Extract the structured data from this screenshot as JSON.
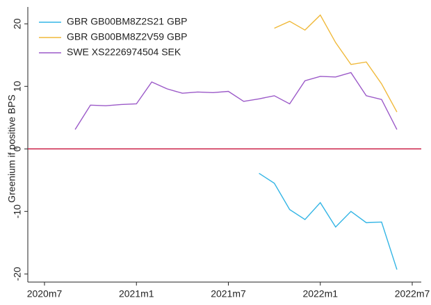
{
  "chart_data": {
    "type": "line",
    "y_label": "Greenium if positive BPS",
    "x": [
      "2020m9",
      "2020m10",
      "2020m11",
      "2020m12",
      "2021m1",
      "2021m2",
      "2021m3",
      "2021m4",
      "2021m5",
      "2021m6",
      "2021m7",
      "2021m8",
      "2021m9",
      "2021m10",
      "2021m11",
      "2021m12",
      "2022m1",
      "2022m2",
      "2022m3",
      "2022m4",
      "2022m5",
      "2022m6"
    ],
    "series": [
      {
        "name": "GBR GB00BM8Z2S21 GBP",
        "color": "#33b5e5",
        "values": [
          null,
          null,
          null,
          null,
          null,
          null,
          null,
          null,
          null,
          null,
          null,
          null,
          -3.9,
          -5.5,
          -9.7,
          -11.3,
          -8.6,
          -12.5,
          -10.0,
          -11.8,
          -11.7,
          -19.3
        ]
      },
      {
        "name": "GBR GB00BM8Z2V59 GBP",
        "color": "#f0b93a",
        "values": [
          null,
          null,
          null,
          null,
          null,
          null,
          null,
          null,
          null,
          null,
          null,
          null,
          null,
          19.3,
          20.4,
          19.0,
          21.4,
          17.0,
          13.5,
          13.9,
          10.4,
          5.9
        ]
      },
      {
        "name": "SWE XS2226974504 SEK",
        "color": "#9b59c8",
        "values": [
          3.1,
          7.0,
          6.9,
          7.1,
          7.2,
          10.7,
          9.6,
          8.9,
          9.1,
          9.0,
          9.2,
          7.6,
          8.0,
          8.5,
          7.2,
          10.9,
          11.6,
          11.5,
          12.2,
          8.5,
          7.9,
          3.1
        ]
      }
    ],
    "xticks": [
      "2020m7",
      "2021m1",
      "2021m7",
      "2022m1",
      "2022m7"
    ],
    "ylim": [
      -21.3,
      22.7
    ],
    "yticks": [
      -20,
      -10,
      0,
      10,
      20
    ],
    "reference_line": {
      "value": 0,
      "color": "#c8103a"
    },
    "legend": "top-left"
  }
}
